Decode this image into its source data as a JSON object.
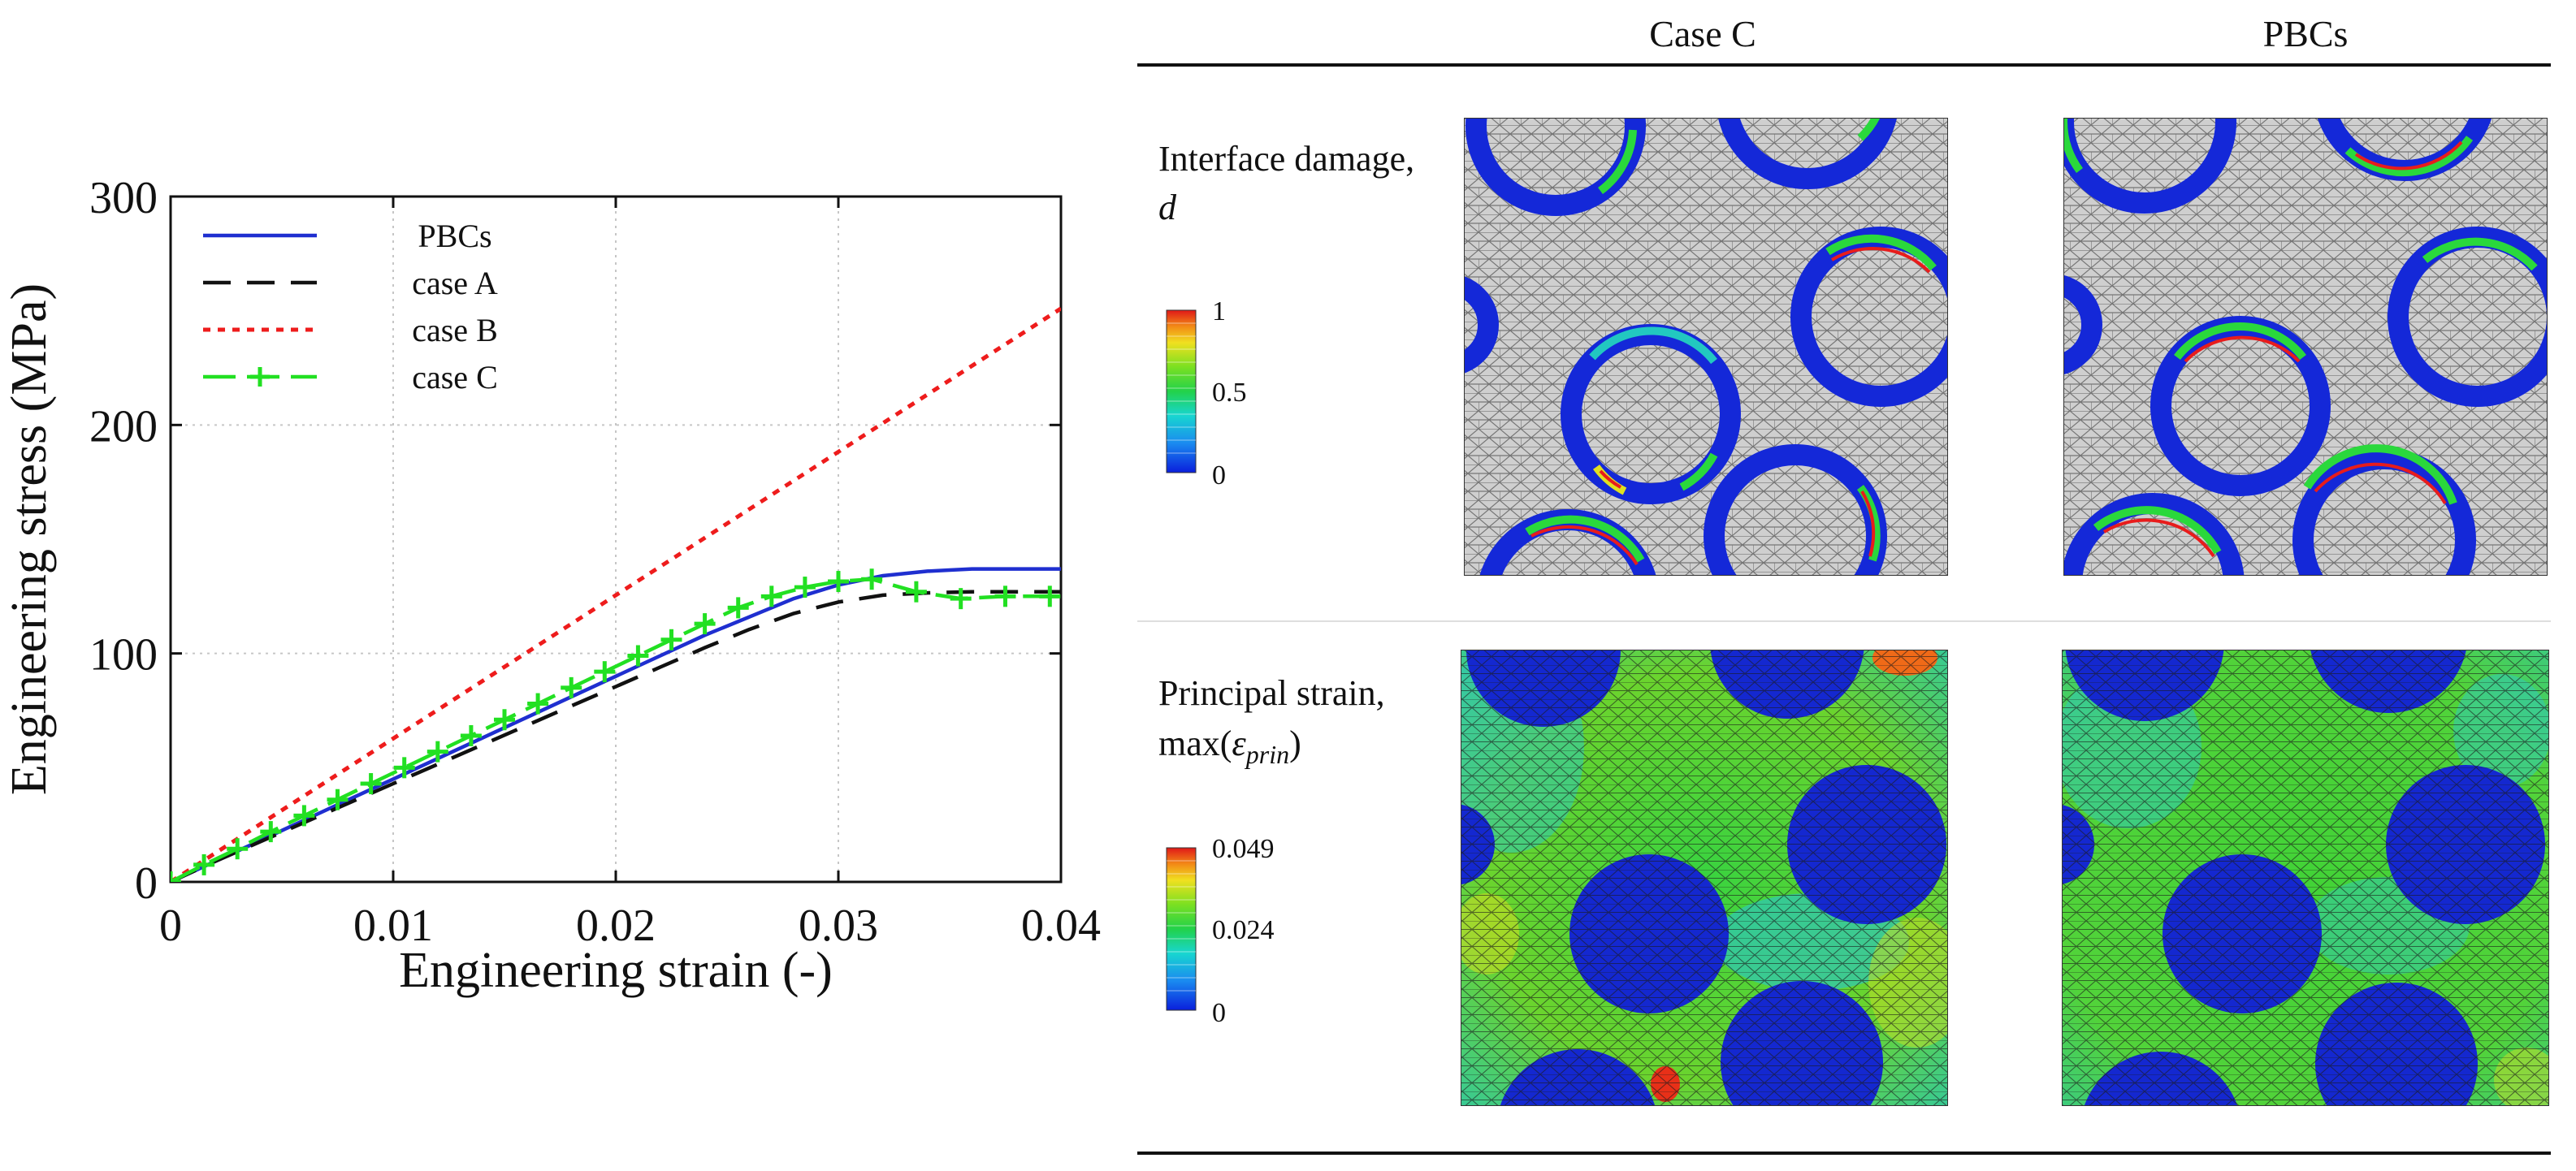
{
  "chart_data": {
    "type": "line",
    "xlabel": "Engineering strain (-)",
    "ylabel": "Engineering stress (MPa)",
    "xlim": [
      0,
      0.04
    ],
    "ylim": [
      0,
      300
    ],
    "x_ticks": [
      0,
      0.01,
      0.02,
      0.03,
      0.04
    ],
    "x_tick_labels": [
      "0",
      "0.01",
      "0.02",
      "0.03",
      "0.04"
    ],
    "y_ticks": [
      0,
      100,
      200,
      300
    ],
    "y_tick_labels": [
      "0",
      "100",
      "200",
      "300"
    ],
    "grid": true,
    "legend_position": "top-left",
    "series": [
      {
        "name": "PBCs",
        "color": "#1f2fd0",
        "dash": "solid",
        "x": [
          0,
          0.002,
          0.004,
          0.006,
          0.008,
          0.01,
          0.012,
          0.014,
          0.016,
          0.018,
          0.02,
          0.022,
          0.024,
          0.026,
          0.028,
          0.03,
          0.032,
          0.034,
          0.035,
          0.036,
          0.038,
          0.04
        ],
        "y": [
          0,
          9,
          18,
          27,
          36,
          45,
          54,
          63,
          72,
          81,
          90,
          99,
          108,
          116,
          124,
          130,
          134,
          136,
          136.5,
          137,
          137,
          137
        ]
      },
      {
        "name": "case A",
        "color": "#111111",
        "dash": "dashed",
        "x": [
          0,
          0.002,
          0.004,
          0.006,
          0.008,
          0.01,
          0.012,
          0.014,
          0.016,
          0.018,
          0.02,
          0.022,
          0.024,
          0.026,
          0.028,
          0.03,
          0.032,
          0.034,
          0.036,
          0.038,
          0.04
        ],
        "y": [
          0,
          9,
          17.5,
          26,
          34.5,
          43,
          51.5,
          60,
          68.5,
          77,
          85.5,
          94,
          102.5,
          110.5,
          117.5,
          122.5,
          125.5,
          126.5,
          127,
          127,
          127
        ]
      },
      {
        "name": "case B",
        "color": "#ee1c1c",
        "dash": "dotted",
        "x": [
          0,
          0.04
        ],
        "y": [
          0,
          251
        ]
      },
      {
        "name": "case C",
        "color": "#22e022",
        "dash": "dashdot-plus",
        "x": [
          0,
          0.0015,
          0.003,
          0.0045,
          0.006,
          0.0075,
          0.009,
          0.0105,
          0.012,
          0.0135,
          0.015,
          0.0165,
          0.018,
          0.0195,
          0.021,
          0.0225,
          0.024,
          0.0255,
          0.027,
          0.0285,
          0.03,
          0.0315,
          0.0335,
          0.0355,
          0.0375,
          0.0395
        ],
        "y": [
          0,
          7.5,
          14.5,
          22,
          29,
          36,
          43,
          50,
          57,
          64,
          71,
          78,
          85,
          92,
          99,
          106,
          113,
          120,
          125,
          129,
          131.5,
          132.5,
          127,
          124,
          125,
          125
        ]
      }
    ]
  },
  "panel": {
    "columns": [
      "Case C",
      "PBCs"
    ],
    "rows": [
      {
        "label_line1": "Interface damage,",
        "label_var": "d",
        "colorbar_ticks": [
          "1",
          "0.5",
          "0"
        ]
      },
      {
        "label_line1": "Principal strain,",
        "label_max": "max(",
        "label_eps": "ε",
        "label_sub": "prin",
        "label_close": ")",
        "colorbar_ticks": [
          "0.049",
          "0.024",
          "0"
        ]
      }
    ]
  }
}
